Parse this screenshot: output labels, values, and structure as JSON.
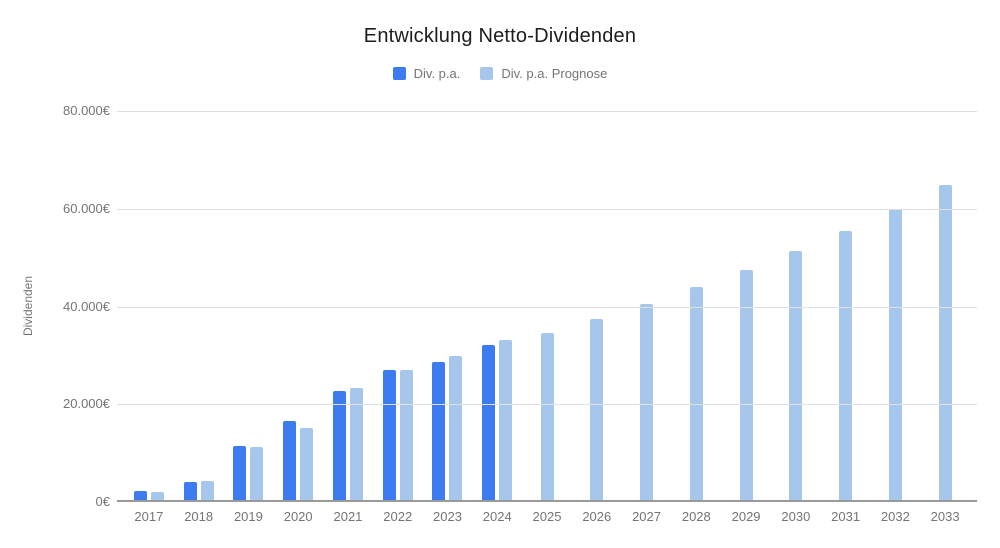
{
  "chart_data": {
    "type": "bar",
    "title": "Entwicklung Netto-Dividenden",
    "xlabel": "",
    "ylabel": "Dividenden",
    "categories": [
      "2017",
      "2018",
      "2019",
      "2020",
      "2021",
      "2022",
      "2023",
      "2024",
      "2025",
      "2026",
      "2027",
      "2028",
      "2029",
      "2030",
      "2031",
      "2032",
      "2033"
    ],
    "series": [
      {
        "name": "Div. p.a.",
        "color": "#3d7bf0",
        "values": [
          1800,
          3600,
          11000,
          16200,
          22300,
          26500,
          28300,
          31700,
          null,
          null,
          null,
          null,
          null,
          null,
          null,
          null,
          null
        ]
      },
      {
        "name": "Div. p.a. Prognose",
        "color": "#a7c6ec",
        "values": [
          1700,
          3900,
          10800,
          14800,
          23000,
          26500,
          29400,
          32700,
          34200,
          37100,
          40200,
          43500,
          47000,
          50900,
          55000,
          59500,
          64500
        ]
      }
    ],
    "ylim": [
      0,
      80000
    ],
    "yticks": [
      {
        "value": 0,
        "label": "0€"
      },
      {
        "value": 20000,
        "label": "20.000€"
      },
      {
        "value": 40000,
        "label": "40.000€"
      },
      {
        "value": 60000,
        "label": "60.000€"
      },
      {
        "value": 80000,
        "label": "80.000€"
      }
    ],
    "grid": true,
    "legend_position": "top"
  },
  "colors": {
    "gridline": "#e0e0e0",
    "axis_line": "#9a9a9a",
    "label_text": "#757575",
    "title_text": "#1d1d1d"
  }
}
